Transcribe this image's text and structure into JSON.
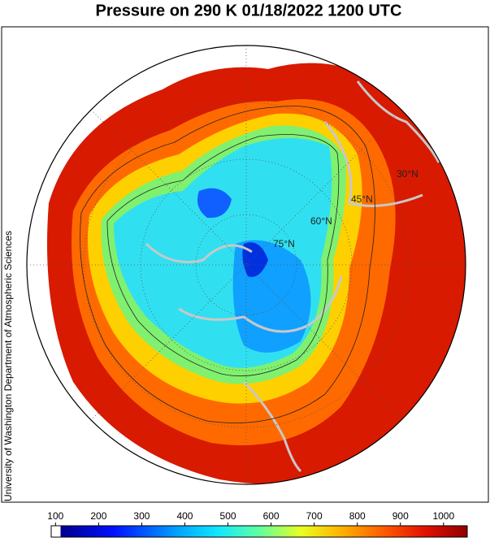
{
  "header": {
    "title": "Pressure on 290 K 01/18/2022 1200 UTC",
    "credit": "University of Washington Department of Atmospheric Sciences"
  },
  "map": {
    "latitude_labels": [
      "30°N",
      "45°N",
      "60°N",
      "75°N"
    ]
  },
  "colorbar": {
    "range": [
      90,
      1055
    ],
    "ticks": [
      100,
      200,
      300,
      400,
      500,
      600,
      700,
      800,
      900,
      1000
    ]
  }
}
